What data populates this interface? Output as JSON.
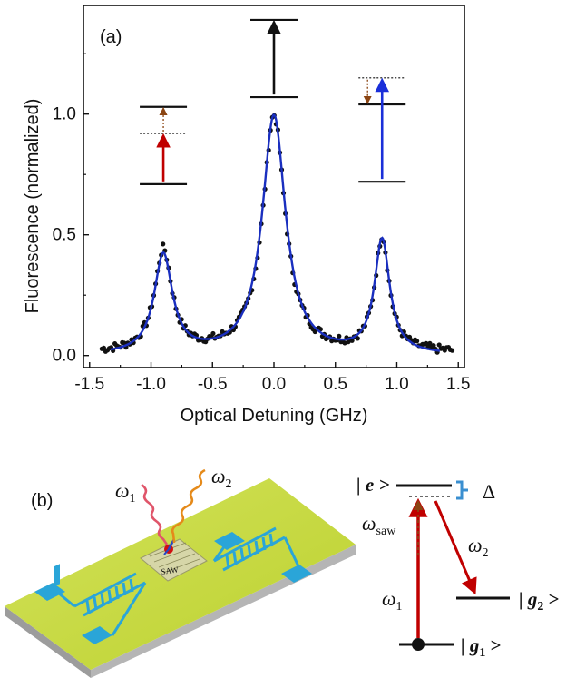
{
  "panel_a": {
    "label": "(a)",
    "chart_data": {
      "type": "line",
      "title": "",
      "xlabel": "Optical Detuning (GHz)",
      "ylabel": "Fluorescence (normalized)",
      "xlim": [
        -1.55,
        1.55
      ],
      "ylim": [
        -0.05,
        1.45
      ],
      "x_ticks": [
        "-1.5",
        "-1.0",
        "-0.5",
        "0.0",
        "0.5",
        "1.0",
        "1.5"
      ],
      "x_tick_values": [
        -1.5,
        -1.0,
        -0.5,
        0.0,
        0.5,
        1.0,
        1.5
      ],
      "y_ticks": [
        "0.0",
        "0.5",
        "1.0"
      ],
      "y_tick_values": [
        0.0,
        0.5,
        1.0
      ],
      "grid": false,
      "series": [
        {
          "kind": "scatter",
          "color": "#111111",
          "model": {
            "baseline": 0.01,
            "peaks": [
              {
                "center": -0.9,
                "amplitude": 0.42,
                "hwhm": 0.085
              },
              {
                "center": 0.0,
                "amplitude": 0.98,
                "hwhm": 0.11
              },
              {
                "center": 0.88,
                "amplitude": 0.47,
                "hwhm": 0.07
              }
            ],
            "x_start": -1.4,
            "x_end": 1.45,
            "n_points": 190
          }
        },
        {
          "kind": "fit-line",
          "color": "#1a2fbf",
          "model": {
            "baseline": 0.0,
            "peaks": [
              {
                "center": -0.9,
                "amplitude": 0.41,
                "hwhm": 0.09
              },
              {
                "center": 0.0,
                "amplitude": 0.99,
                "hwhm": 0.115
              },
              {
                "center": 0.88,
                "amplitude": 0.47,
                "hwhm": 0.075
              }
            ],
            "x_start": -1.33,
            "x_end": 1.35
          }
        }
      ],
      "level_schemes": [
        {
          "name": "red-sideband",
          "x": -0.9,
          "lower": 0.71,
          "virtual": 0.92,
          "upper": 1.03,
          "pump": "up-to-virtual",
          "pump_color": "#c00000",
          "phonon": "up",
          "phonon_color": "#8b4513"
        },
        {
          "name": "carrier",
          "x": 0.0,
          "lower": 1.07,
          "upper": 1.39,
          "pump": "up-to-upper",
          "pump_color": "#111111"
        },
        {
          "name": "blue-sideband",
          "x": 0.88,
          "lower": 0.72,
          "virtual": 1.15,
          "upper": 1.04,
          "pump": "up-to-virtual",
          "pump_color": "#1a2fd9",
          "phonon": "down",
          "phonon_color": "#8b4513"
        }
      ]
    }
  },
  "panel_b": {
    "label": "(b)",
    "device": {
      "beam1_label": "ω",
      "beam1_sub": "1",
      "beam2_label": "ω",
      "beam2_sub": "2",
      "saw_label": "SAW",
      "substrate_color": "#c7dc3c",
      "electrode_color": "#2aa5d8",
      "beam1_color": "#e0556a",
      "beam2_color": "#e58a1a"
    },
    "levels": {
      "e_state": "| e >",
      "delta": "Δ",
      "saw_freq": "ω",
      "saw_freq_sub": "saw",
      "omega1": "ω",
      "omega1_sub": "1",
      "omega2": "ω",
      "omega2_sub": "2",
      "g2_state_prefix": "| g",
      "g2_state_sub": "2",
      "g2_state_suffix": " >",
      "g1_state_prefix": "| g",
      "g1_state_sub": "1",
      "g1_state_suffix": " >",
      "bracket_color": "#3a8fd0",
      "arrow_color": "#c00000",
      "phonon_color": "#8b4513"
    }
  }
}
